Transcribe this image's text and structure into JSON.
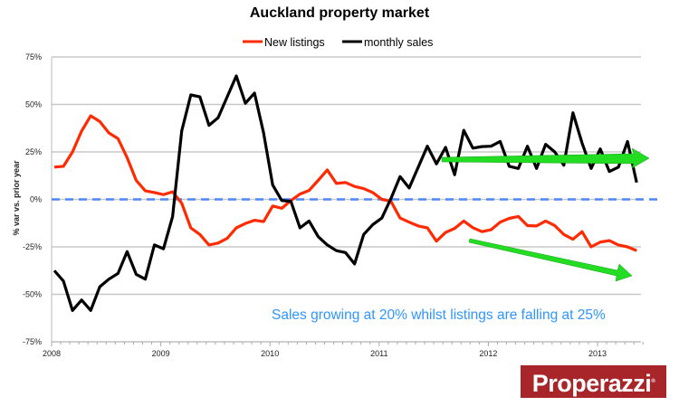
{
  "chart_data": {
    "type": "line",
    "title": "Auckland property market",
    "xlabel": "",
    "ylabel": "% var vs. prior year",
    "ylim": [
      -75,
      75
    ],
    "yticks": [
      "75%",
      "50%",
      "25%",
      "0%",
      "-25%",
      "-50%",
      "-75%"
    ],
    "ytick_values": [
      75,
      50,
      25,
      0,
      -25,
      -50,
      -75
    ],
    "xticks": [
      "2008",
      "2009",
      "2010",
      "2011",
      "2012",
      "2013"
    ],
    "x_start": "Jan 2008",
    "x_frequency": "monthly",
    "grid": true,
    "legend_position": "top",
    "series": [
      {
        "name": "New listings",
        "color": "#ff2a00",
        "values": [
          17,
          17.4,
          25,
          36,
          44,
          41,
          35,
          32,
          22,
          10,
          4.5,
          3.6,
          2.5,
          4,
          -2,
          -15,
          -18.5,
          -24,
          -23,
          -20.5,
          -15,
          -12.7,
          -11,
          -11.7,
          -3.5,
          -4.7,
          -0.6,
          2.8,
          4.7,
          10,
          15.5,
          8.4,
          8.9,
          6.8,
          5.7,
          3.6,
          0,
          -1,
          -9.8,
          -12,
          -14,
          -15,
          -22,
          -17.4,
          -15.3,
          -11.4,
          -14.9,
          -17,
          -16,
          -12,
          -10,
          -9,
          -13.8,
          -14,
          -11.4,
          -13.8,
          -18.5,
          -21,
          -17,
          -25,
          -22.5,
          -21.7,
          -24,
          -25,
          -27
        ]
      },
      {
        "name": "monthly sales",
        "color": "#000000",
        "values": [
          -37.5,
          -43,
          -58.5,
          -53,
          -58.5,
          -46,
          -42,
          -39,
          -27.5,
          -39.5,
          -42,
          -24,
          -26,
          -9,
          36,
          55,
          54,
          39,
          43,
          54,
          65,
          50.6,
          56,
          35,
          7.6,
          -0.6,
          -1,
          -15,
          -11.4,
          -19.6,
          -24,
          -27,
          -28,
          -34,
          -18.5,
          -13.3,
          -9.8,
          0.5,
          12,
          6,
          17,
          28,
          18.7,
          27.4,
          13,
          36.4,
          27,
          27.8,
          28,
          30.5,
          17.4,
          16.3,
          28,
          16.3,
          29,
          25,
          18,
          45.6,
          29.7,
          16.3,
          26.6,
          14.7,
          17,
          30.5,
          8.9
        ]
      }
    ],
    "reference_line": {
      "value": 0,
      "color": "#4f86f7",
      "style": "dashed"
    },
    "annotations": [
      {
        "text": "Sales growing at 20% whilst listings are falling at 25%",
        "color": "#2f95ff"
      },
      {
        "type": "arrow",
        "color": "#22dd22",
        "description_trend": "flat"
      },
      {
        "type": "arrow",
        "color": "#22dd22",
        "description_trend": "down"
      }
    ]
  },
  "logo": "Properazzi"
}
